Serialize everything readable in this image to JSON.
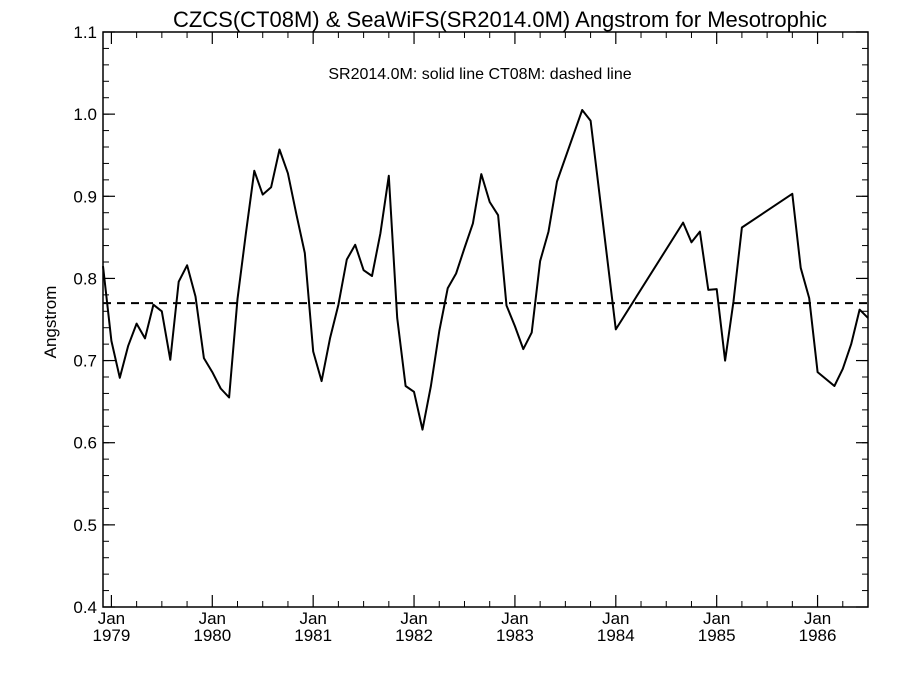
{
  "chart_data": {
    "type": "line",
    "title": "CZCS(CT08M) & SeaWiFS(SR2014.0M)  Angstrom for Mesotrophic",
    "legend_note": "SR2014.0M: solid line   CT08M: dashed line",
    "ylabel": "Angstrom",
    "xlabel": "",
    "ylim": [
      0.4,
      1.1
    ],
    "xlim": [
      "1978-12",
      "1986-07"
    ],
    "y_ticks": [
      "0.4",
      "0.5",
      "0.6",
      "0.7",
      "0.8",
      "0.9",
      "1.0",
      "1.1"
    ],
    "x_ticks": [
      {
        "month": "Jan",
        "year": "1979",
        "date": "1979-01"
      },
      {
        "month": "Jan",
        "year": "1980",
        "date": "1980-01"
      },
      {
        "month": "Jan",
        "year": "1981",
        "date": "1981-01"
      },
      {
        "month": "Jan",
        "year": "1982",
        "date": "1982-01"
      },
      {
        "month": "Jan",
        "year": "1983",
        "date": "1983-01"
      },
      {
        "month": "Jan",
        "year": "1984",
        "date": "1984-01"
      },
      {
        "month": "Jan",
        "year": "1985",
        "date": "1985-01"
      },
      {
        "month": "Jan",
        "year": "1986",
        "date": "1986-01"
      }
    ],
    "series": [
      {
        "name": "SR2014.0M",
        "style": "solid",
        "color": "#000000",
        "points": [
          [
            "1978-12",
            0.815
          ],
          [
            "1979-01",
            0.724
          ],
          [
            "1979-02",
            0.679
          ],
          [
            "1979-03",
            0.718
          ],
          [
            "1979-04",
            0.745
          ],
          [
            "1979-05",
            0.727
          ],
          [
            "1979-06",
            0.768
          ],
          [
            "1979-07",
            0.76
          ],
          [
            "1979-08",
            0.701
          ],
          [
            "1979-09",
            0.796
          ],
          [
            "1979-10",
            0.816
          ],
          [
            "1979-11",
            0.778
          ],
          [
            "1979-12",
            0.703
          ],
          [
            "1980-01",
            0.686
          ],
          [
            "1980-02",
            0.666
          ],
          [
            "1980-03",
            0.655
          ],
          [
            "1980-04",
            0.775
          ],
          [
            "1980-05",
            0.855
          ],
          [
            "1980-06",
            0.931
          ],
          [
            "1980-07",
            0.902
          ],
          [
            "1980-08",
            0.911
          ],
          [
            "1980-09",
            0.957
          ],
          [
            "1980-10",
            0.928
          ],
          [
            "1980-11",
            0.878
          ],
          [
            "1980-12",
            0.831
          ],
          [
            "1981-01",
            0.711
          ],
          [
            "1981-02",
            0.675
          ],
          [
            "1981-03",
            0.727
          ],
          [
            "1981-04",
            0.768
          ],
          [
            "1981-05",
            0.823
          ],
          [
            "1981-06",
            0.841
          ],
          [
            "1981-07",
            0.81
          ],
          [
            "1981-08",
            0.803
          ],
          [
            "1981-09",
            0.855
          ],
          [
            "1981-10",
            0.925
          ],
          [
            "1981-11",
            0.752
          ],
          [
            "1981-12",
            0.669
          ],
          [
            "1982-01",
            0.662
          ],
          [
            "1982-02",
            0.616
          ],
          [
            "1982-03",
            0.669
          ],
          [
            "1982-04",
            0.736
          ],
          [
            "1982-05",
            0.788
          ],
          [
            "1982-06",
            0.806
          ],
          [
            "1982-07",
            0.837
          ],
          [
            "1982-08",
            0.867
          ],
          [
            "1982-09",
            0.927
          ],
          [
            "1982-10",
            0.893
          ],
          [
            "1982-11",
            0.877
          ],
          [
            "1982-12",
            0.767
          ],
          [
            "1983-01",
            0.742
          ],
          [
            "1983-02",
            0.714
          ],
          [
            "1983-03",
            0.734
          ],
          [
            "1983-04",
            0.821
          ],
          [
            "1983-05",
            0.857
          ],
          [
            "1983-06",
            0.918
          ],
          [
            "1983-09",
            1.005
          ],
          [
            "1983-10",
            0.992
          ],
          [
            "1984-01",
            0.738
          ],
          [
            "1984-09",
            0.868
          ],
          [
            "1984-10",
            0.844
          ],
          [
            "1984-11",
            0.857
          ],
          [
            "1984-12",
            0.786
          ],
          [
            "1985-01",
            0.787
          ],
          [
            "1985-02",
            0.7
          ],
          [
            "1985-03",
            0.772
          ],
          [
            "1985-04",
            0.862
          ],
          [
            "1985-10",
            0.903
          ],
          [
            "1985-11",
            0.813
          ],
          [
            "1985-12",
            0.776
          ],
          [
            "1986-01",
            0.686
          ],
          [
            "1986-03",
            0.669
          ],
          [
            "1986-04",
            0.69
          ],
          [
            "1986-05",
            0.72
          ],
          [
            "1986-06",
            0.762
          ],
          [
            "1986-07",
            0.752
          ]
        ]
      },
      {
        "name": "CT08M",
        "style": "dashed",
        "color": "#000000",
        "points": [
          [
            "1978-12",
            0.77
          ],
          [
            "1986-07",
            0.77
          ]
        ]
      }
    ],
    "grid": false
  }
}
